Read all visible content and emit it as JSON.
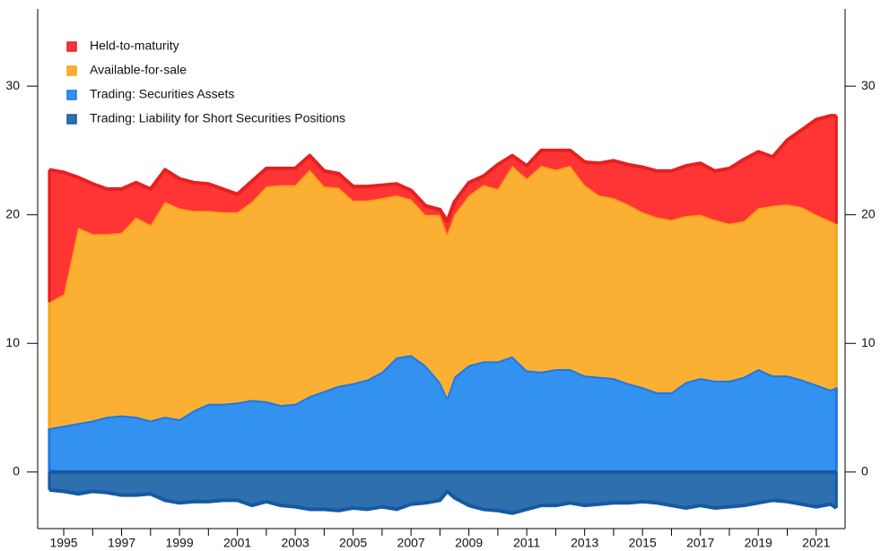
{
  "chart_data": {
    "type": "stacked_area",
    "x": [
      1994.5,
      1995,
      1995.5,
      1996,
      1996.5,
      1997,
      1997.5,
      1998,
      1998.5,
      1999,
      1999.5,
      2000,
      2000.5,
      2001,
      2001.5,
      2002,
      2002.5,
      2003,
      2003.5,
      2004,
      2004.5,
      2005,
      2005.5,
      2006,
      2006.5,
      2007,
      2007.5,
      2008,
      2008.25,
      2008.5,
      2009,
      2009.5,
      2010,
      2010.5,
      2011,
      2011.5,
      2012,
      2012.5,
      2013,
      2013.5,
      2014,
      2014.5,
      2015,
      2015.5,
      2016,
      2016.5,
      2017,
      2017.5,
      2018,
      2018.5,
      2019,
      2019.5,
      2020,
      2020.5,
      2021,
      2021.5,
      2021.7
    ],
    "series": [
      {
        "name": "Held-to-maturity",
        "color": "#ff3535",
        "line_color": "#e62020",
        "values": [
          10.3,
          9.5,
          3.9,
          3.9,
          3.5,
          3.4,
          2.7,
          2.8,
          2.5,
          2.3,
          2.2,
          2.1,
          1.8,
          1.4,
          1.6,
          1.4,
          1.3,
          1.3,
          1.1,
          1.2,
          1.1,
          1.1,
          1.1,
          1.0,
          0.9,
          0.7,
          0.7,
          0.4,
          1.0,
          1.0,
          1.0,
          0.7,
          1.9,
          0.8,
          1.0,
          1.2,
          1.5,
          1.2,
          1.8,
          2.5,
          2.9,
          3.1,
          3.5,
          3.6,
          3.8,
          3.9,
          4.0,
          3.8,
          4.3,
          4.8,
          4.4,
          3.8,
          5.0,
          6.0,
          7.4,
          8.2,
          8.4
        ]
      },
      {
        "name": "Available-for-sale",
        "color": "#fbb034",
        "line_color": "#f5a51a",
        "values": [
          9.8,
          10.2,
          15.2,
          14.5,
          14.2,
          14.2,
          15.5,
          15.2,
          16.7,
          16.4,
          15.5,
          15.0,
          14.9,
          14.8,
          15.4,
          16.7,
          17.1,
          17.0,
          17.6,
          15.9,
          15.4,
          14.2,
          13.9,
          13.5,
          12.6,
          12.1,
          11.7,
          13.0,
          12.7,
          12.6,
          13.2,
          13.7,
          13.4,
          14.8,
          14.9,
          16.0,
          15.5,
          15.8,
          14.8,
          14.1,
          14.0,
          13.9,
          13.6,
          13.6,
          13.4,
          12.9,
          12.7,
          12.5,
          12.2,
          12.1,
          12.5,
          13.2,
          13.3,
          13.4,
          13.2,
          13.1,
          12.7
        ]
      },
      {
        "name": "Trading: Securities Assets",
        "color": "#3391f0",
        "line_color": "#1f78e0",
        "values": [
          3.4,
          3.6,
          3.8,
          4.0,
          4.3,
          4.4,
          4.3,
          4.0,
          4.3,
          4.1,
          4.8,
          5.3,
          5.3,
          5.4,
          5.6,
          5.5,
          5.2,
          5.3,
          5.9,
          6.3,
          6.7,
          6.9,
          7.2,
          7.8,
          8.9,
          9.1,
          8.3,
          7.0,
          5.8,
          7.4,
          8.3,
          8.6,
          8.6,
          9.0,
          7.9,
          7.8,
          8.0,
          8.0,
          7.5,
          7.4,
          7.3,
          6.9,
          6.6,
          6.2,
          6.2,
          7.0,
          7.3,
          7.1,
          7.1,
          7.4,
          8.0,
          7.5,
          7.5,
          7.2,
          6.8,
          6.4,
          6.6
        ]
      },
      {
        "name": "Trading: Liability for Short Securities Positions",
        "color": "#2e6fad",
        "line_color": "#1559a3",
        "values": [
          -1.4,
          -1.5,
          -1.7,
          -1.5,
          -1.6,
          -1.8,
          -1.8,
          -1.7,
          -2.2,
          -2.4,
          -2.3,
          -2.3,
          -2.2,
          -2.2,
          -2.6,
          -2.3,
          -2.6,
          -2.7,
          -2.9,
          -2.9,
          -3.0,
          -2.8,
          -2.9,
          -2.7,
          -2.9,
          -2.5,
          -2.4,
          -2.2,
          -1.5,
          -2.0,
          -2.6,
          -2.9,
          -3.0,
          -3.2,
          -2.9,
          -2.6,
          -2.6,
          -2.4,
          -2.6,
          -2.5,
          -2.4,
          -2.4,
          -2.3,
          -2.4,
          -2.6,
          -2.8,
          -2.6,
          -2.8,
          -2.7,
          -2.6,
          -2.4,
          -2.2,
          -2.3,
          -2.5,
          -2.7,
          -2.5,
          -2.8
        ]
      }
    ],
    "xlim": [
      1994.1,
      2022.0
    ],
    "xticks": [
      1995,
      1997,
      1999,
      2001,
      2003,
      2005,
      2007,
      2009,
      2011,
      2013,
      2015,
      2017,
      2019,
      2021
    ],
    "xminor_ticks": [
      1996,
      1998,
      2000,
      2002,
      2004,
      2006,
      2008,
      2010,
      2012,
      2014,
      2016,
      2018,
      2020
    ],
    "ylim": [
      -4.4,
      36
    ],
    "yticks": [
      0,
      10,
      20,
      30
    ],
    "y2lim": [
      -4.4,
      36
    ],
    "y2ticks": [
      0,
      10,
      20,
      30
    ],
    "legend": "upper left",
    "grid": false
  }
}
